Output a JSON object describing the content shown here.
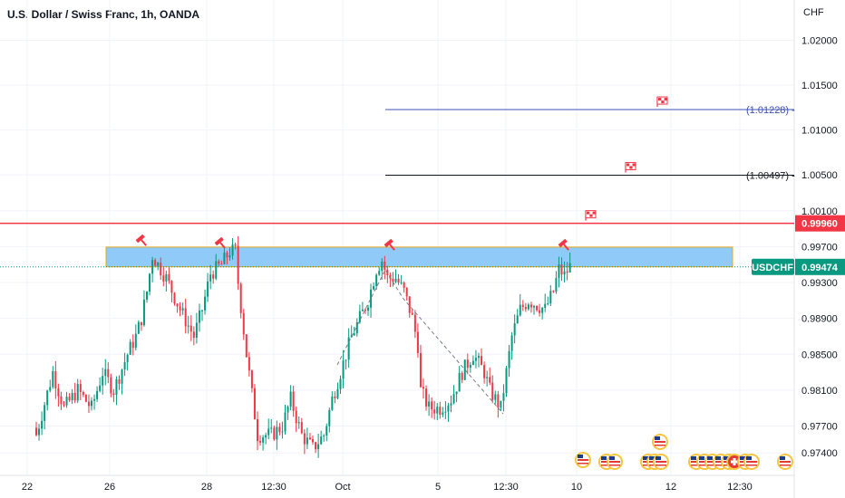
{
  "header": {
    "title": "U.S. Dollar / Swiss Franc, 1h, OANDA",
    "currency": "CHF"
  },
  "chart_data": {
    "type": "candlestick",
    "symbol": "USDCHF",
    "last_price": "0.99474",
    "ylim": [
      0.9715,
      1.0245
    ],
    "yticks": [
      "1.02000",
      "1.01500",
      "1.01000",
      "1.00500",
      "1.00100",
      "0.99700",
      "0.99300",
      "0.98900",
      "0.98500",
      "0.98100",
      "0.97700",
      "0.97400"
    ],
    "ytick_values": [
      1.02,
      1.015,
      1.01,
      1.005,
      1.001,
      0.997,
      0.993,
      0.989,
      0.985,
      0.981,
      0.977,
      0.974
    ],
    "xticks": [
      "22",
      "26",
      "28",
      "12:30",
      "Oct",
      "5",
      "12:30",
      "10",
      "12",
      "12:30"
    ],
    "price_path": [
      [
        0,
        0.976
      ],
      [
        6,
        0.983
      ],
      [
        10,
        0.979
      ],
      [
        15,
        0.981
      ],
      [
        20,
        0.979
      ],
      [
        24,
        0.983
      ],
      [
        28,
        0.981
      ],
      [
        33,
        0.985
      ],
      [
        36,
        0.987
      ],
      [
        38,
        0.989
      ],
      [
        40,
        0.992
      ],
      [
        42,
        0.996
      ],
      [
        44,
        0.995
      ],
      [
        47,
        0.9935
      ],
      [
        52,
        0.99
      ],
      [
        57,
        0.987
      ],
      [
        60,
        0.99
      ],
      [
        63,
        0.994
      ],
      [
        67,
        0.995
      ],
      [
        70,
        0.9965
      ],
      [
        72,
        0.9965
      ],
      [
        73,
        0.993
      ],
      [
        76,
        0.985
      ],
      [
        80,
        0.976
      ],
      [
        85,
        0.976
      ],
      [
        89,
        0.977
      ],
      [
        92,
        0.98
      ],
      [
        96,
        0.976
      ],
      [
        100,
        0.9745
      ],
      [
        104,
        0.976
      ],
      [
        107,
        0.98
      ],
      [
        111,
        0.984
      ],
      [
        114,
        0.987
      ],
      [
        117,
        0.989
      ],
      [
        120,
        0.991
      ],
      [
        123,
        0.9945
      ],
      [
        125,
        0.9955
      ],
      [
        127,
        0.9935
      ],
      [
        130,
        0.9935
      ],
      [
        133,
        0.992
      ],
      [
        136,
        0.989
      ],
      [
        138,
        0.986
      ],
      [
        139,
        0.981
      ],
      [
        142,
        0.979
      ],
      [
        146,
        0.979
      ],
      [
        150,
        0.98
      ],
      [
        154,
        0.983
      ],
      [
        158,
        0.985
      ],
      [
        162,
        0.983
      ],
      [
        164,
        0.981
      ],
      [
        166,
        0.98
      ],
      [
        168,
        0.979
      ],
      [
        170,
        0.983
      ],
      [
        172,
        0.987
      ],
      [
        175,
        0.99
      ],
      [
        178,
        0.991
      ],
      [
        181,
        0.9905
      ],
      [
        184,
        0.99
      ],
      [
        187,
        0.992
      ],
      [
        189,
        0.9945
      ],
      [
        191,
        0.9938
      ],
      [
        193,
        0.9948
      ]
    ],
    "levels": [
      {
        "value": 0.9996,
        "label": "0.99960",
        "color": "#f23645"
      },
      {
        "value": 1.00497,
        "label": "(1.00497) -",
        "color": "#131722"
      },
      {
        "value": 1.01228,
        "label": "(1.01228) -",
        "color": "#3f51b5"
      }
    ],
    "resistance_zone": [
      0.99475,
      0.99695
    ],
    "colors": {
      "up": "#089981",
      "down": "#f23645",
      "zone_fill": "#90caf9",
      "zone_border": "#e6a817",
      "last_price": "#089981"
    }
  }
}
